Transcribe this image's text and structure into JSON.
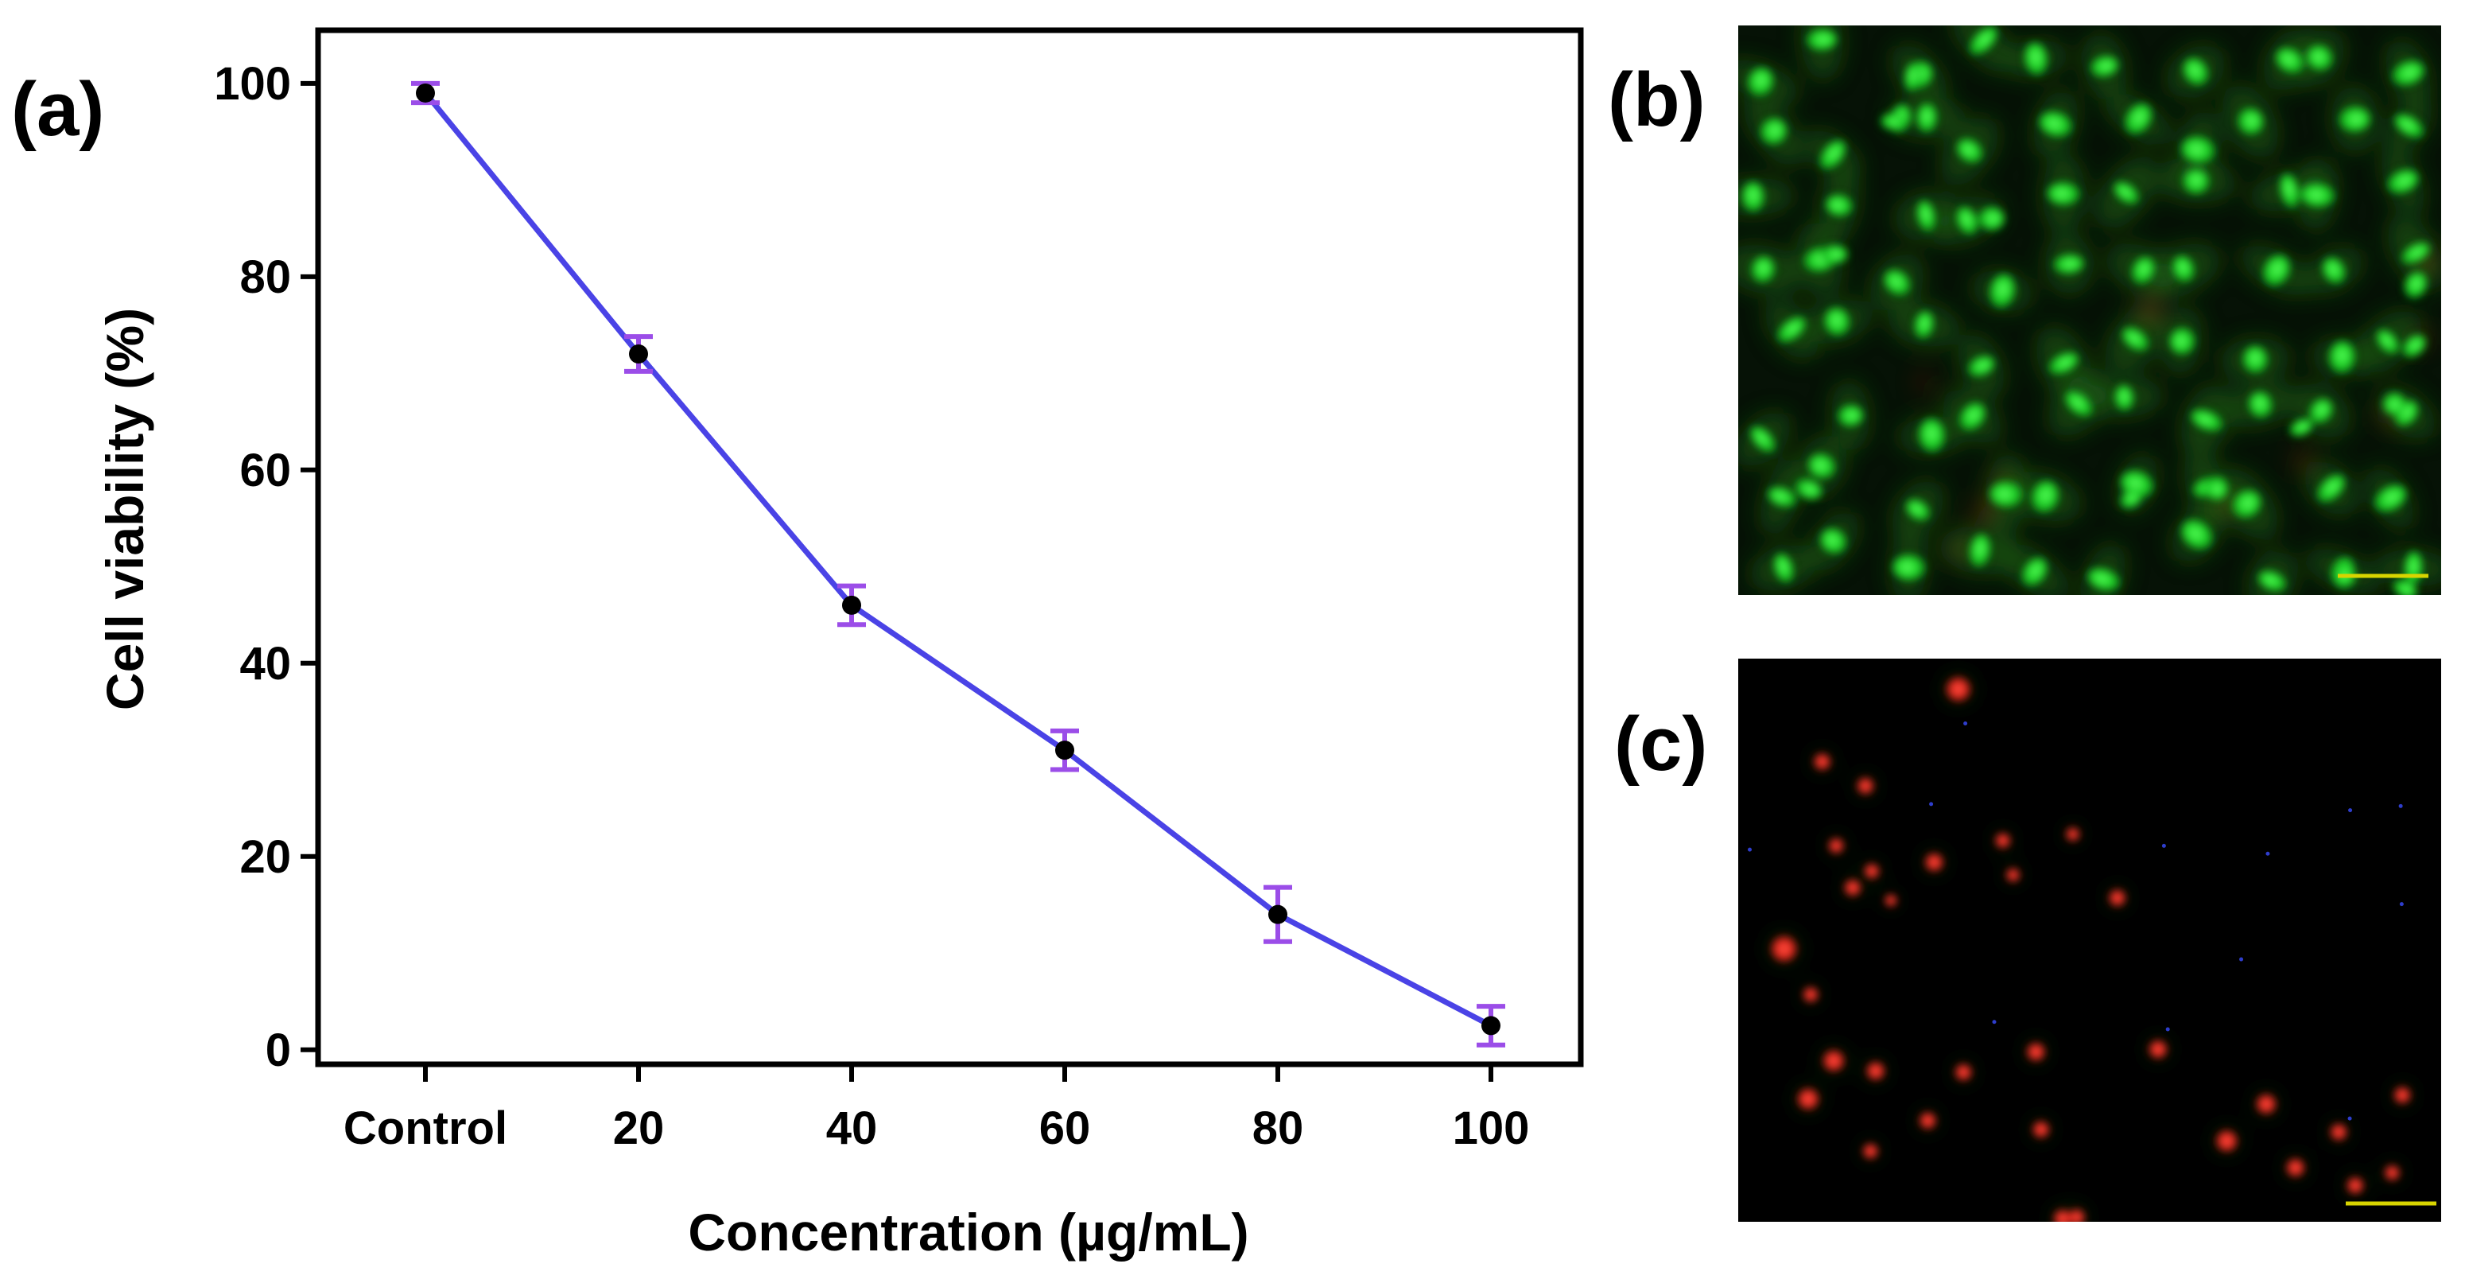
{
  "panels": {
    "a": "(a)",
    "b": "(b)",
    "c": "(c)"
  },
  "chart_data": {
    "type": "line",
    "categories": [
      "Control",
      "20",
      "40",
      "60",
      "80",
      "100"
    ],
    "series": [
      {
        "name": "Cell viability",
        "values": [
          99,
          72,
          46,
          31,
          14,
          2.5
        ],
        "errors": [
          1,
          1.8,
          2,
          2,
          2.8,
          2
        ]
      }
    ],
    "xlabel": "Concentration (µg/mL)",
    "ylabel": "Cell viability (%)",
    "yticks": [
      0,
      20,
      40,
      60,
      80,
      100
    ],
    "ylim": [
      -1.5,
      105.5
    ],
    "grid": false,
    "legend": "none"
  },
  "images": {
    "b": {
      "description_name": "live-cell-fluorescence",
      "dominant": "green"
    },
    "c": {
      "description_name": "dead-cell-fluorescence",
      "dominant": "red"
    }
  },
  "colors": {
    "line": "#4a43e6",
    "error_bar": "#9b4de8",
    "marker": "#000000",
    "live_stain": "#23d52c",
    "dead_stain": "#e8231a",
    "scale_bar": "#d8d400",
    "micrograph_bg": "#000000"
  }
}
